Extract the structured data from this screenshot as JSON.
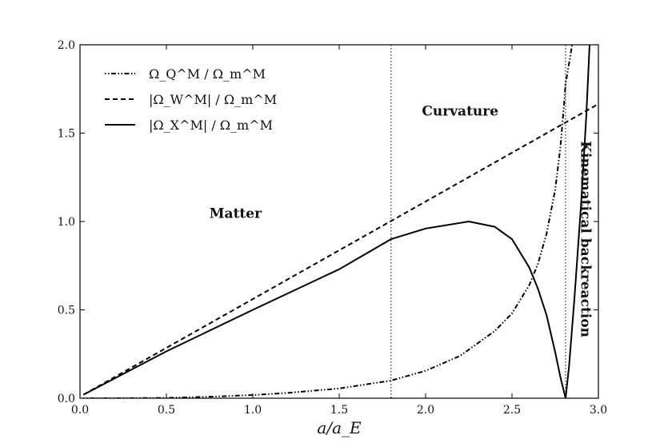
{
  "chart_data": {
    "type": "line",
    "xlabel": "a/a_E",
    "ylabel": "",
    "xlim": [
      0.0,
      3.0
    ],
    "ylim": [
      0.0,
      2.0
    ],
    "x_ticks": [
      "0.0",
      "0.5",
      "1.0",
      "1.5",
      "2.0",
      "2.5",
      "3.0"
    ],
    "y_ticks": [
      "0.0",
      "0.5",
      "1.0",
      "1.5",
      "2.0"
    ],
    "grid": false,
    "legend_position": "top-left",
    "vlines": [
      1.8,
      2.81
    ],
    "annotations": [
      {
        "text": "Matter",
        "x": 0.9,
        "y": 1.02
      },
      {
        "text": "Curvature",
        "x": 2.2,
        "y": 1.6
      },
      {
        "text": "Kinematical backreaction",
        "x": 2.9,
        "y": 0.9,
        "rotation": 90
      }
    ],
    "series": [
      {
        "name": "Ω_Q^M / Ω_m^M",
        "style": "dashdot",
        "x": [
          0.02,
          0.2,
          0.5,
          0.8,
          1.0,
          1.2,
          1.5,
          1.8,
          2.0,
          2.2,
          2.4,
          2.5,
          2.6,
          2.65,
          2.7,
          2.75,
          2.78,
          2.8,
          2.81,
          2.84,
          2.85
        ],
        "values": [
          0.0,
          0.0,
          0.002,
          0.01,
          0.018,
          0.03,
          0.055,
          0.1,
          0.155,
          0.24,
          0.38,
          0.48,
          0.64,
          0.76,
          0.93,
          1.18,
          1.42,
          1.65,
          1.78,
          1.95,
          2.02
        ]
      },
      {
        "name": "|Ω_W^M| / Ω_m^M",
        "style": "dashed",
        "x": [
          0.02,
          3.0
        ],
        "values": [
          0.02,
          1.665
        ]
      },
      {
        "name": "|Ω_X^M| / Ω_m^M",
        "style": "solid",
        "x": [
          0.02,
          0.5,
          1.0,
          1.5,
          1.8,
          2.0,
          2.25,
          2.4,
          2.5,
          2.6,
          2.65,
          2.7,
          2.75,
          2.78,
          2.8,
          2.81,
          2.83,
          2.86,
          2.9,
          2.93,
          2.95
        ],
        "values": [
          0.02,
          0.265,
          0.5,
          0.73,
          0.9,
          0.96,
          1.0,
          0.97,
          0.9,
          0.74,
          0.62,
          0.47,
          0.26,
          0.12,
          0.04,
          0.0,
          0.18,
          0.55,
          1.1,
          1.6,
          2.02
        ]
      }
    ]
  }
}
